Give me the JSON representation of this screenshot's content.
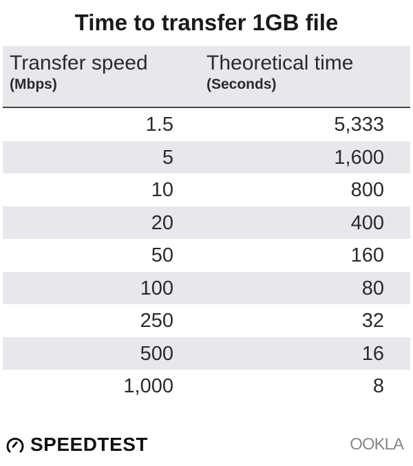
{
  "chart_data": {
    "type": "table",
    "title": "Time to transfer 1GB file",
    "columns": [
      {
        "label": "Transfer speed",
        "unit": "(Mbps)"
      },
      {
        "label": "Theoretical time",
        "unit": "(Seconds)"
      }
    ],
    "rows": [
      [
        "1.5",
        "5,333"
      ],
      [
        "5",
        "1,600"
      ],
      [
        "10",
        "800"
      ],
      [
        "20",
        "400"
      ],
      [
        "50",
        "160"
      ],
      [
        "100",
        "80"
      ],
      [
        "250",
        "32"
      ],
      [
        "500",
        "16"
      ],
      [
        "1,000",
        "8"
      ]
    ],
    "stripe_color": "#e8e8ec"
  },
  "footer": {
    "brand_left": "SPEEDTEST",
    "brand_right": "OOKLA"
  }
}
